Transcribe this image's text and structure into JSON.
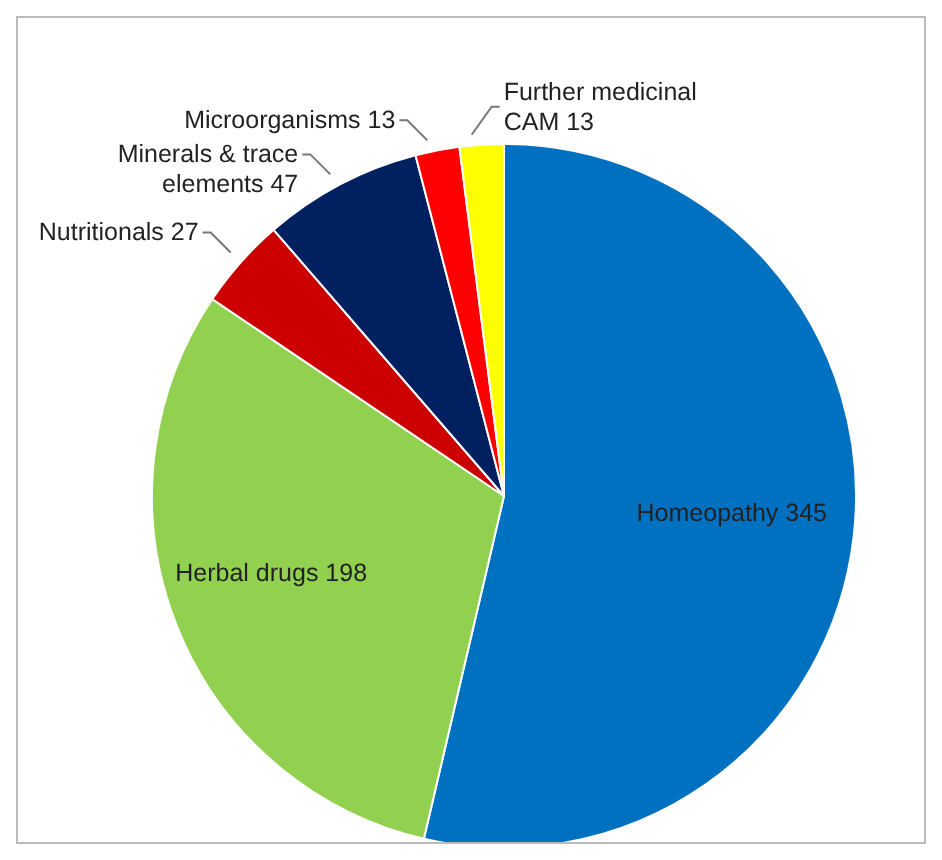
{
  "chart_data": {
    "type": "pie",
    "categories": [
      "Homeopathy",
      "Herbal drugs",
      "Nutritionals",
      "Minerals & trace elements",
      "Microorganisms",
      "Further medicinal CAM"
    ],
    "values": [
      345,
      198,
      27,
      47,
      13,
      13
    ],
    "colors": [
      "#0070c0",
      "#92d050",
      "#cc0000",
      "#002060",
      "#ff0000",
      "#ffff00"
    ],
    "data_labels": true,
    "legend": false
  }
}
